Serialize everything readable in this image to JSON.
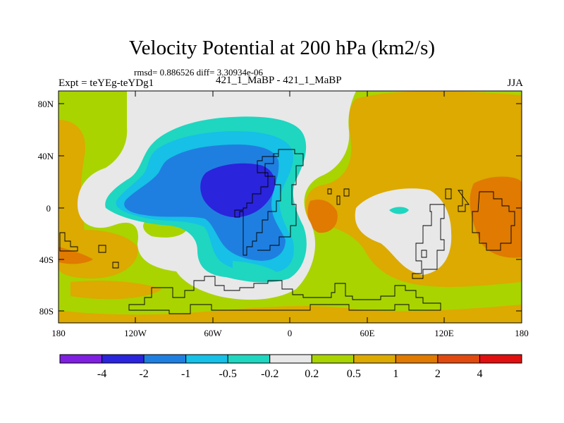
{
  "title": "Velocity Potential at 200 hPa (km2/s)",
  "stats": "rmsd= 0.886526 diff= 3.30934e-06",
  "left_label": "Expt = teYEg-teYDg1",
  "center_label": "421_1_MaBP - 421_1_MaBP",
  "right_label": "JJA",
  "lat_ticks": [
    "80N",
    "40N",
    "0",
    "40S",
    "80S"
  ],
  "lon_ticks": [
    "180",
    "120W",
    "60W",
    "0",
    "60E",
    "120E",
    "180"
  ],
  "colorbar": {
    "colors": [
      "#7f1fe0",
      "#2a24dc",
      "#1f7fe0",
      "#16c0e6",
      "#1fd6c0",
      "#e8e8e8",
      "#a9d400",
      "#dcaa00",
      "#e07a00",
      "#e04a10",
      "#e01010"
    ],
    "labels": [
      "-4",
      "-2",
      "-1",
      "-0.5",
      "-0.2",
      "0.2",
      "0.5",
      "1",
      "2",
      "4"
    ]
  },
  "map_colors": {
    "background": "#a9d400",
    "neutral": "#e8e8e8",
    "cyan": "#1fd6c0",
    "lightblue": "#16c0e6",
    "blue": "#1f7fe0",
    "darkblue": "#2a24dc",
    "orange": "#dcaa00",
    "darkorange": "#e07a00"
  }
}
